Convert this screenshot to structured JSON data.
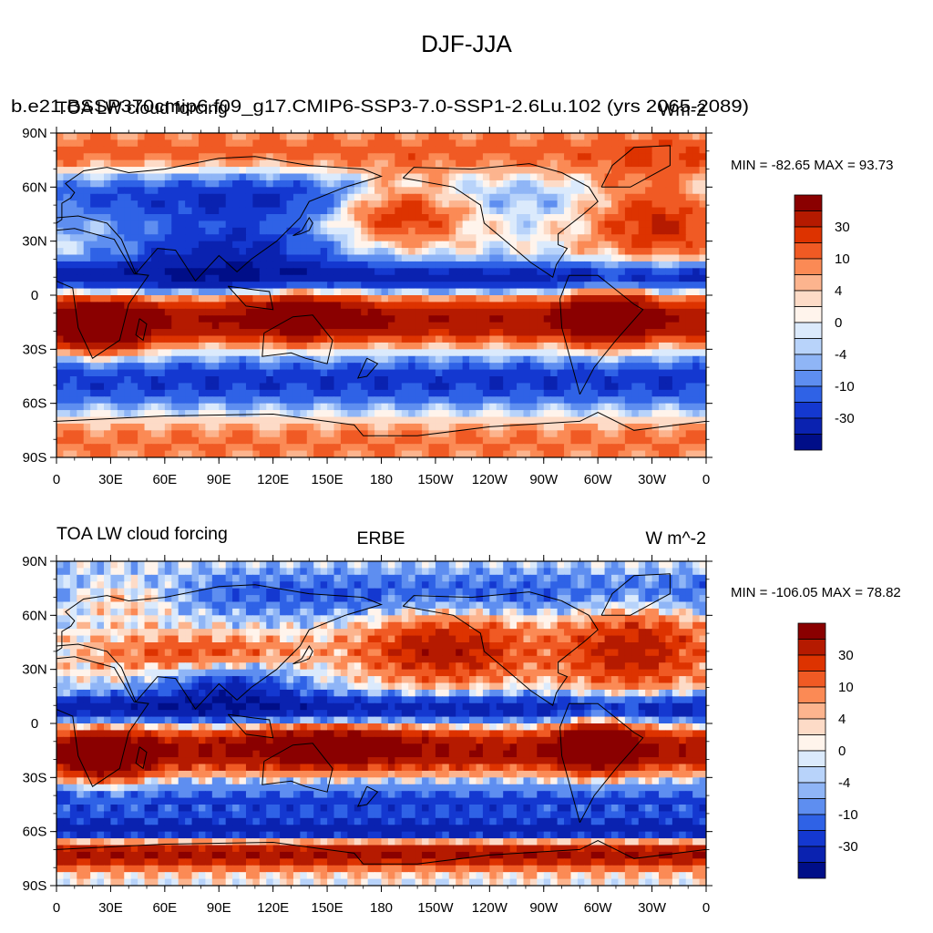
{
  "figure": {
    "title": "DJF-JJA"
  },
  "panels": [
    {
      "left_title": "b.e21.BSSP370cmip6.f09_g17.CMIP6-SSP3-7.0-SSP1-2.6Lu.102 (yrs 2065-2089)",
      "left_title_overlap": "TOA LW cloud forcing",
      "center_title": "",
      "right_title": "Wm-2",
      "stats": "MIN = -82.65 MAX =  93.73"
    },
    {
      "left_title": "TOA LW cloud forcing",
      "left_title_overlap": "",
      "center_title": "ERBE",
      "right_title": "W m^-2",
      "stats": "MIN = -106.05 MAX =  78.82"
    }
  ],
  "axes": {
    "lon_ticks": [
      "0",
      "30E",
      "60E",
      "90E",
      "120E",
      "150E",
      "180",
      "150W",
      "120W",
      "90W",
      "60W",
      "30W",
      "0"
    ],
    "lat_ticks": [
      "90N",
      "60N",
      "30N",
      "0",
      "30S",
      "60S",
      "90S"
    ]
  },
  "colorbar": {
    "labels": [
      "30",
      "10",
      "4",
      "0",
      "-4",
      "-10",
      "-30"
    ],
    "colors": [
      "#8a0000",
      "#b51a00",
      "#dd3300",
      "#f05a24",
      "#fb8a55",
      "#fcb48e",
      "#fddbc7",
      "#fff4ec",
      "#dbeafc",
      "#b8d3fa",
      "#8fb5f6",
      "#5e8ef0",
      "#2f62e6",
      "#1438d0",
      "#0a22b0",
      "#000e88"
    ]
  },
  "chart_data": [
    {
      "type": "heatmap",
      "title": "b.e21.BSSP370cmip6.f09_g17.CMIP6-SSP3-7.0-SSP1-2.6Lu.102 (yrs 2065-2089)",
      "variable": "TOA LW cloud forcing",
      "units": "Wm-2",
      "x_range": [
        0,
        360
      ],
      "y_range": [
        -90,
        90
      ],
      "min": -82.65,
      "max": 93.73,
      "contour_levels": [
        -40,
        -30,
        -20,
        -15,
        -10,
        -6,
        -4,
        -2,
        0,
        2,
        4,
        6,
        10,
        15,
        20,
        30,
        40
      ]
    },
    {
      "type": "heatmap",
      "title": "ERBE",
      "variable": "TOA LW cloud forcing",
      "units": "W m^-2",
      "x_range": [
        0,
        360
      ],
      "y_range": [
        -90,
        90
      ],
      "min": -106.05,
      "max": 78.82,
      "contour_levels": [
        -40,
        -30,
        -20,
        -15,
        -10,
        -6,
        -4,
        -2,
        0,
        2,
        4,
        6,
        10,
        15,
        20,
        30,
        40
      ]
    }
  ]
}
